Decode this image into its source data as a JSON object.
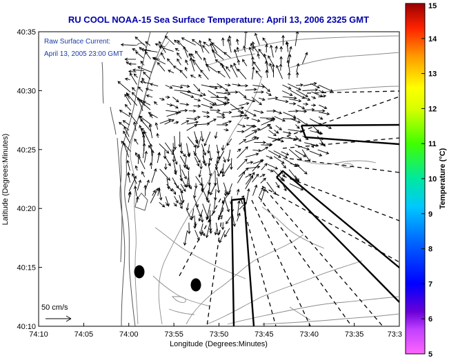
{
  "chart_data": {
    "type": "vector-field",
    "title": "RU COOL  NOAA-15  Sea Surface Temperature:  April 13, 2006 2325 GMT",
    "xlabel": "Longitude (Degrees:Minutes)",
    "ylabel": "Latitude (Degrees:Minutes)",
    "x_ticks": [
      "74:10",
      "74:05",
      "74:00",
      "73:55",
      "73:50",
      "73:45",
      "73:40",
      "73:35",
      "73:3"
    ],
    "y_ticks": [
      "40:35",
      "40:30",
      "40:25",
      "40:20",
      "40:15",
      "40:10"
    ],
    "annotation_lines": [
      "Raw Surface Current:",
      "April 13, 2005 23:00 GMT"
    ],
    "scale_label": "50 cm/s",
    "colorbar": {
      "label": "Temperature (°C)",
      "range": [
        5,
        15
      ],
      "ticks": [
        "5",
        "6",
        "7",
        "8",
        "9",
        "10",
        "11",
        "12",
        "13",
        "14",
        "15"
      ]
    }
  }
}
